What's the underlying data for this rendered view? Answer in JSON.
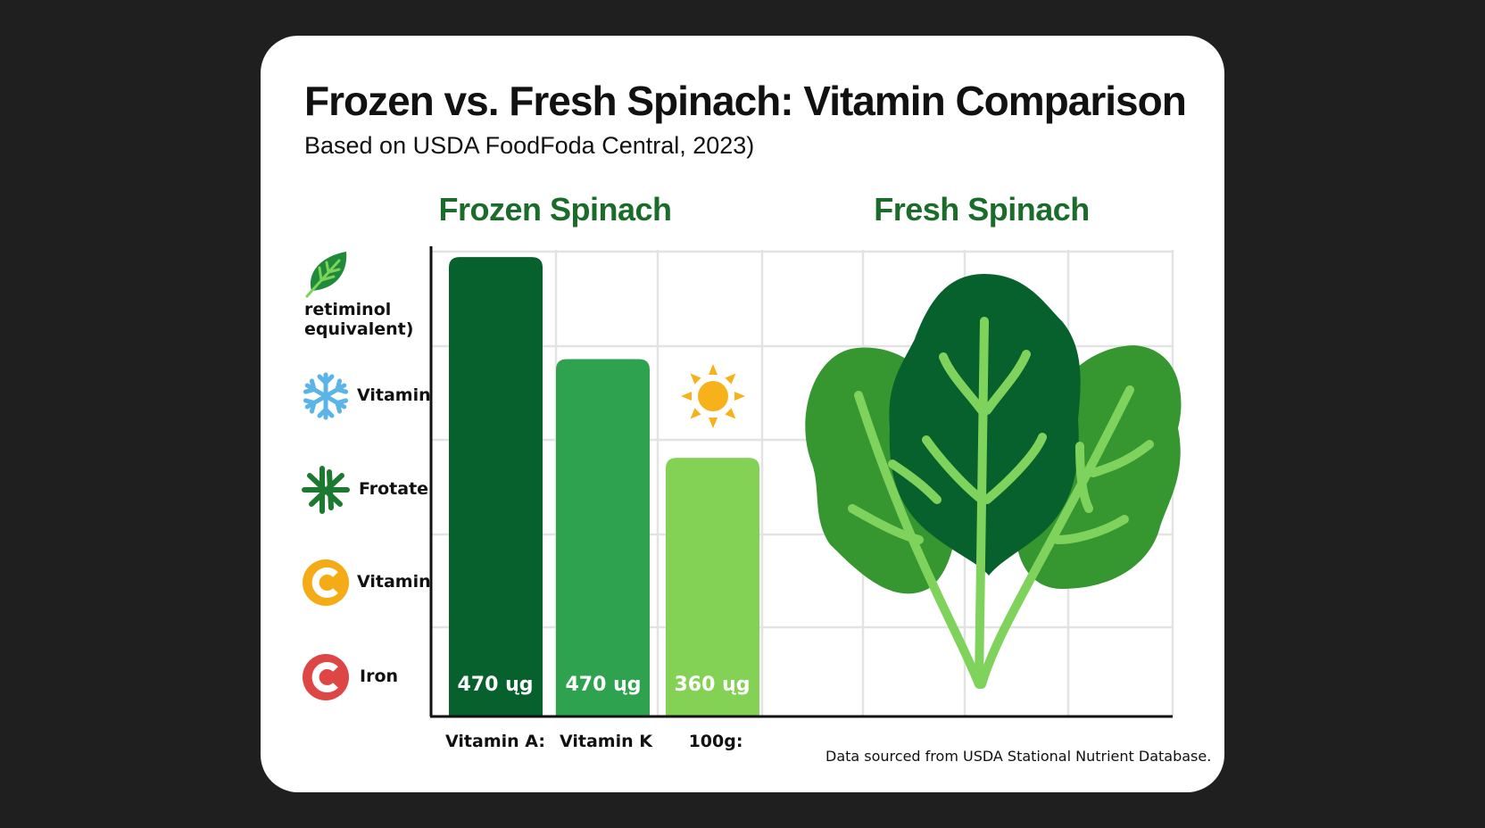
{
  "title": "Frozen vs. Fresh Spinach: Vitamin Comparison",
  "subtitle": "Based on USDA FoodFoda Central, 2023)",
  "footer": "Data sourced from USDA Stational Nutrient Database.",
  "colors": {
    "background": "#1f1f1f",
    "card": "#ffffff",
    "heading_green": "#1b6b2a",
    "bar_dark": "#07612c",
    "bar_mid": "#2fa24f",
    "bar_light": "#84d255",
    "grid": "#e3e3e3"
  },
  "chart_data": {
    "type": "bar",
    "title": "Frozen vs. Fresh Spinach: Vitamin Comparison",
    "panels": [
      "Frozen Spinach",
      "Fresh Spinach"
    ],
    "categories": [
      "Vitamin A:",
      "Vitamin K",
      "100g:"
    ],
    "value_labels": [
      "470 ųg",
      "470 ųg",
      "360 ųg"
    ],
    "values": [
      470,
      470,
      360
    ],
    "bar_levels": [
      0.977,
      0.76,
      0.55
    ],
    "grid": true,
    "legend": [
      {
        "icon": "leaf-icon",
        "label_lines": [
          "retiminol",
          "equivalent)"
        ]
      },
      {
        "icon": "snowflake-icon",
        "label": "Vitamin"
      },
      {
        "icon": "folate-icon",
        "label": "Frotate"
      },
      {
        "icon": "vitamin-c-orange-icon",
        "label": "Vitamin"
      },
      {
        "icon": "iron-c-red-icon",
        "label": "Iron"
      }
    ],
    "annotations": [
      "sun-icon above 100g bar",
      "spinach-illustration in Fresh Spinach panel"
    ]
  }
}
